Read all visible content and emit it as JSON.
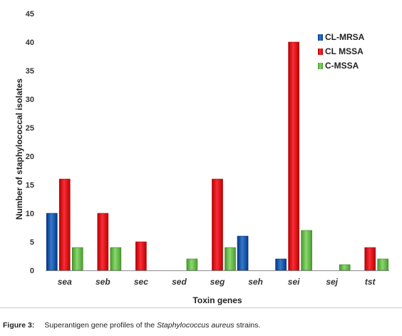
{
  "chart_data": {
    "type": "bar",
    "xlabel": "Toxin genes",
    "ylabel": "Number of staphylococcal isolates",
    "ylim": [
      0,
      45
    ],
    "yticks": [
      0,
      5,
      10,
      15,
      20,
      25,
      30,
      35,
      40,
      45
    ],
    "grid": false,
    "legend_position": "top-right",
    "categories": [
      "sea",
      "seb",
      "sec",
      "sed",
      "seg",
      "seh",
      "sei",
      "sej",
      "tst"
    ],
    "series": [
      {
        "name": "CL-MRSA",
        "color": "#1f5fb0",
        "values": [
          10,
          0,
          0,
          0,
          0,
          6,
          2,
          0,
          0
        ]
      },
      {
        "name": "CL MSSA",
        "color": "#e0141e",
        "values": [
          16,
          10,
          5,
          0,
          16,
          0,
          40,
          0,
          4
        ]
      },
      {
        "name": "C-MSSA",
        "color": "#6fbf55",
        "values": [
          4,
          4,
          0,
          2,
          4,
          0,
          7,
          1,
          2
        ]
      }
    ]
  },
  "caption": {
    "label": "Figure 3:",
    "text_before": "Superantigen gene profiles of the ",
    "species": "Staphylococcus aureus",
    "text_after": " strains."
  }
}
